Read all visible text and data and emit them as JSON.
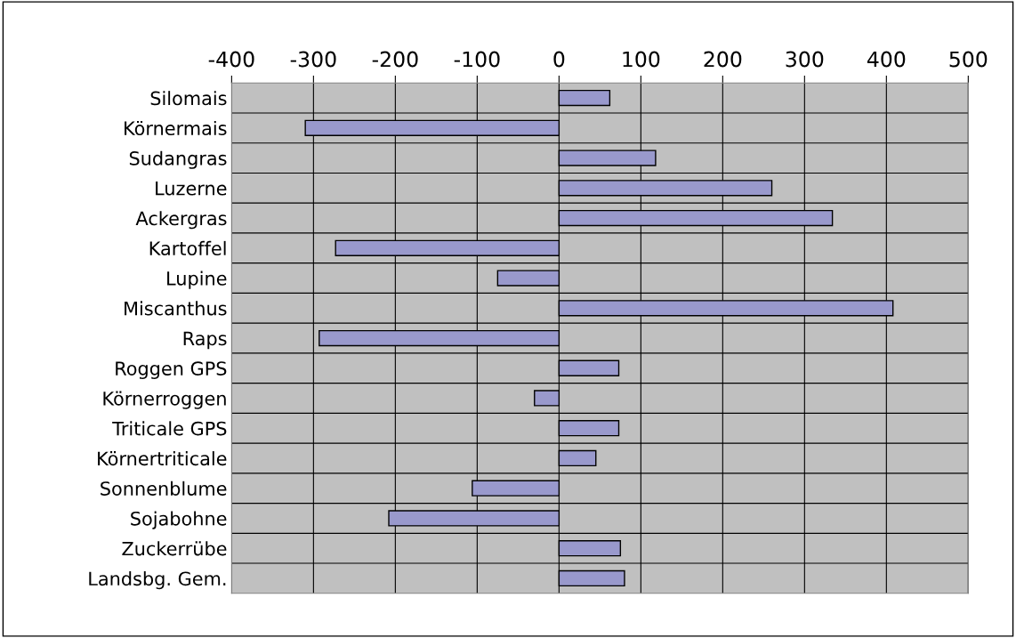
{
  "chart_data": {
    "type": "bar",
    "orientation": "horizontal",
    "categories": [
      "Silomais",
      "Körnermais",
      "Sudangras",
      "Luzerne",
      "Ackergras",
      "Kartoffel",
      "Lupine",
      "Miscanthus",
      "Raps",
      "Roggen GPS",
      "Körnerroggen",
      "Triticale GPS",
      "Körnertriticale",
      "Sonnenblume",
      "Sojabohne",
      "Zuckerrübe",
      "Landsbg. Gem."
    ],
    "values": [
      62,
      -310,
      118,
      260,
      334,
      -273,
      -75,
      408,
      -293,
      73,
      -30,
      73,
      45,
      -106,
      -208,
      75,
      80
    ],
    "color": "#9999cc",
    "xlim": [
      -400,
      500
    ],
    "xticks": [
      -400,
      -300,
      -200,
      -100,
      0,
      100,
      200,
      300,
      400,
      500
    ],
    "grid": true,
    "legend": false
  }
}
